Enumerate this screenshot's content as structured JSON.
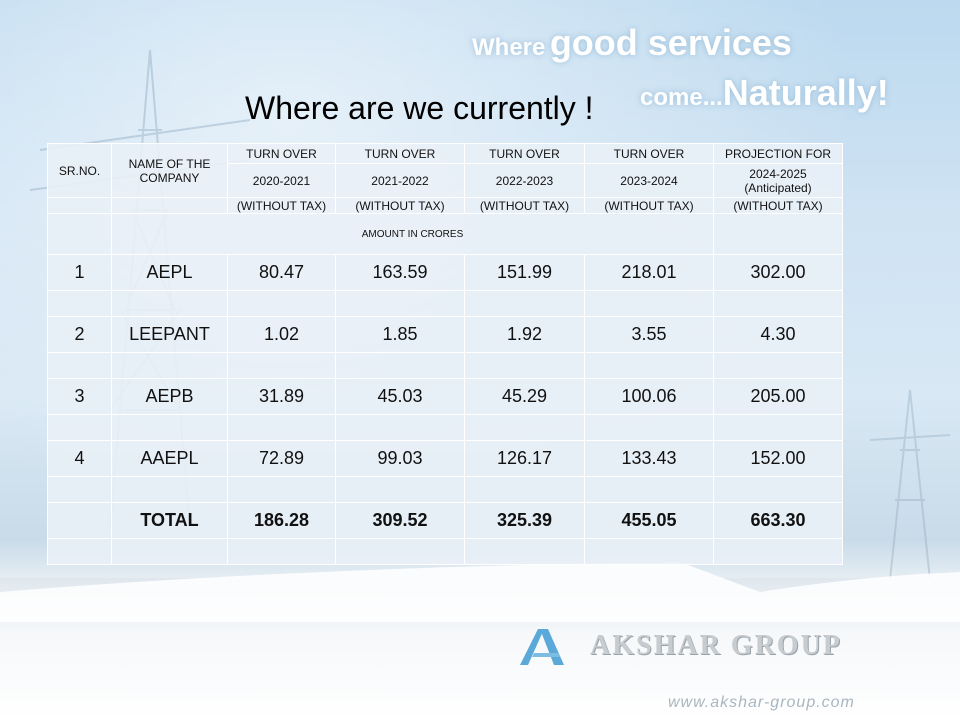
{
  "tagline": {
    "line1_small": "Where",
    "line1_big": "good services",
    "line2_small": "come...",
    "line2_big": "Naturally!"
  },
  "title": "Where are we currently !",
  "table": {
    "header": {
      "sr_no": "SR.NO.",
      "company": "NAME OF THE COMPANY",
      "turnover": "TURN OVER",
      "projection": "PROJECTION FOR",
      "years": [
        "2020-2021",
        "2021-2022",
        "2022-2023",
        "2023-2024",
        "2024-2025 (Anticipated)"
      ],
      "tax_note": "(WITHOUT TAX)"
    },
    "amount_note": "AMOUNT IN CRORES",
    "rows": [
      {
        "sr": "1",
        "name": "AEPL",
        "v": [
          "80.47",
          "163.59",
          "151.99",
          "218.01",
          "302.00"
        ]
      },
      {
        "sr": "2",
        "name": "LEEPANT",
        "v": [
          "1.02",
          "1.85",
          "1.92",
          "3.55",
          "4.30"
        ]
      },
      {
        "sr": "3",
        "name": "AEPB",
        "v": [
          "31.89",
          "45.03",
          "45.29",
          "100.06",
          "205.00"
        ]
      },
      {
        "sr": "4",
        "name": "AAEPL",
        "v": [
          "72.89",
          "99.03",
          "126.17",
          "133.43",
          "152.00"
        ]
      }
    ],
    "total": {
      "label": "TOTAL",
      "v": [
        "186.28",
        "309.52",
        "325.39",
        "455.05",
        "663.30"
      ]
    }
  },
  "logo": {
    "name": "AKSHAR GROUP",
    "icon": "akshar-a-icon"
  },
  "url": "www.akshar-group.com",
  "colors": {
    "note_red": "#e00000",
    "logo_blue": "#5aa9d8"
  }
}
